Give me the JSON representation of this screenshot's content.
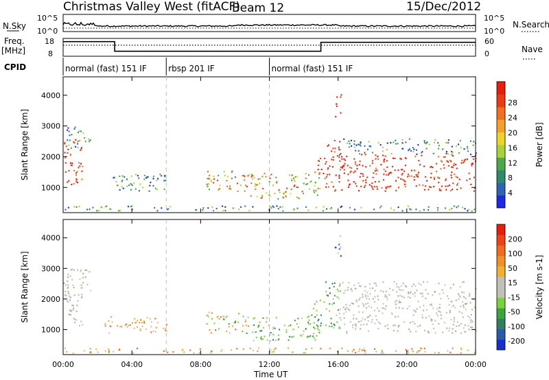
{
  "chart_data": {
    "type": "heatmap",
    "title": "Christmas Valley West (fitACF)",
    "beam_label": "Beam 12",
    "date": "15/Dec/2012",
    "time_axis": {
      "label": "Time UT",
      "range_hours": [
        0,
        24
      ],
      "tick_labels": [
        "00:00",
        "04:00",
        "08:00",
        "12:00",
        "16:00",
        "20:00",
        "00:00"
      ],
      "tick_hours": [
        0,
        4,
        8,
        12,
        16,
        20,
        24
      ]
    },
    "top_panels": {
      "nsky_label": "N.Sky",
      "nsearch_label": "N.Search",
      "freq_label": [
        "Freq.",
        "[MHz]"
      ],
      "nave_label": "Nave",
      "nsky_ticks": [
        "10^5",
        "10^0"
      ],
      "nsearch_ticks": [
        "10^5",
        "10^0"
      ],
      "freq_ticks": [
        18,
        8
      ],
      "nave_ticks": [
        60,
        0
      ],
      "freq_steps": [
        {
          "start_hour": 0,
          "end_hour": 3,
          "level": 0.82
        },
        {
          "start_hour": 3,
          "end_hour": 15,
          "level": 0.28
        },
        {
          "start_hour": 15,
          "end_hour": 24,
          "level": 0.78
        }
      ],
      "nave_level": 0.62
    },
    "cpid": {
      "label": "CPID",
      "segments": [
        {
          "start_hour": 0,
          "end_hour": 6,
          "name": "normal (fast) 151 IF"
        },
        {
          "start_hour": 6,
          "end_hour": 12,
          "name": "rbsp 201 IF"
        },
        {
          "start_hour": 12,
          "end_hour": 24,
          "name": "normal (fast) 151 IF"
        }
      ]
    },
    "panels": [
      {
        "id": "power",
        "ylabel": "Slant Range [km]",
        "ylim": [
          180,
          4600
        ],
        "yticks": [
          1000,
          2000,
          3000,
          4000
        ],
        "colorbar": {
          "label": "Power [dB]",
          "ticks": [
            "4",
            "8",
            "12",
            "16",
            "20",
            "24",
            "28"
          ],
          "colors": [
            "#1e28e6",
            "#2b64b4",
            "#2f8a6a",
            "#4da84a",
            "#a8d23a",
            "#f0d22a",
            "#f5a02a",
            "#f07020",
            "#ec3a14",
            "#e61e0a"
          ]
        }
      },
      {
        "id": "velocity",
        "ylabel": "Slant Range [km]",
        "ylim": [
          180,
          4600
        ],
        "yticks": [
          1000,
          2000,
          3000,
          4000
        ],
        "colorbar": {
          "label": "Velocity [m s-1]",
          "ticks": [
            "200",
            "100",
            "50",
            "15",
            "-15",
            "-50",
            "-100",
            "-200"
          ],
          "colors": [
            "#1432c8",
            "#2a5aa8",
            "#2f8060",
            "#3ca43c",
            "#7ad23a",
            "#c0c0b8",
            "#c0c0b8",
            "#f0b030",
            "#f09028",
            "#f06a20",
            "#ec4414",
            "#e61e0a"
          ]
        }
      }
    ],
    "scatter_regions": [
      {
        "t0": 0.0,
        "t1": 1.1,
        "r0": 1100,
        "r1": 2600,
        "power": "strong",
        "vel": "grey"
      },
      {
        "t0": 0.2,
        "t1": 1.6,
        "r0": 2300,
        "r1": 3000,
        "power": "weak",
        "vel": "grey"
      },
      {
        "t0": 2.4,
        "t1": 6.0,
        "r0": 900,
        "r1": 1450,
        "power": "weak",
        "vel": "orange"
      },
      {
        "t0": 8.3,
        "t1": 10.8,
        "r0": 900,
        "r1": 1600,
        "power": "medium",
        "vel": "mixed"
      },
      {
        "t0": 10.8,
        "t1": 15.0,
        "r0": 650,
        "r1": 1500,
        "power": "medium",
        "vel": "green"
      },
      {
        "t0": 14.5,
        "t1": 15.2,
        "r0": 1450,
        "r1": 2000,
        "power": "strong",
        "vel": "green"
      },
      {
        "t0": 15.2,
        "t1": 16.1,
        "r0": 900,
        "r1": 2600,
        "power": "strong",
        "vel": "green"
      },
      {
        "t0": 15.8,
        "t1": 16.2,
        "r0": 3300,
        "r1": 4100,
        "power": "strong",
        "vel": "blue"
      },
      {
        "t0": 16.0,
        "t1": 24.0,
        "r0": 900,
        "r1": 2100,
        "power": "strong",
        "vel": "grey"
      },
      {
        "t0": 16.0,
        "t1": 24.0,
        "r0": 2100,
        "r1": 2600,
        "power": "weak",
        "vel": "grey"
      },
      {
        "t0": 0.0,
        "t1": 24.0,
        "r0": 250,
        "r1": 420,
        "power": "weak",
        "vel": "orange"
      }
    ]
  }
}
